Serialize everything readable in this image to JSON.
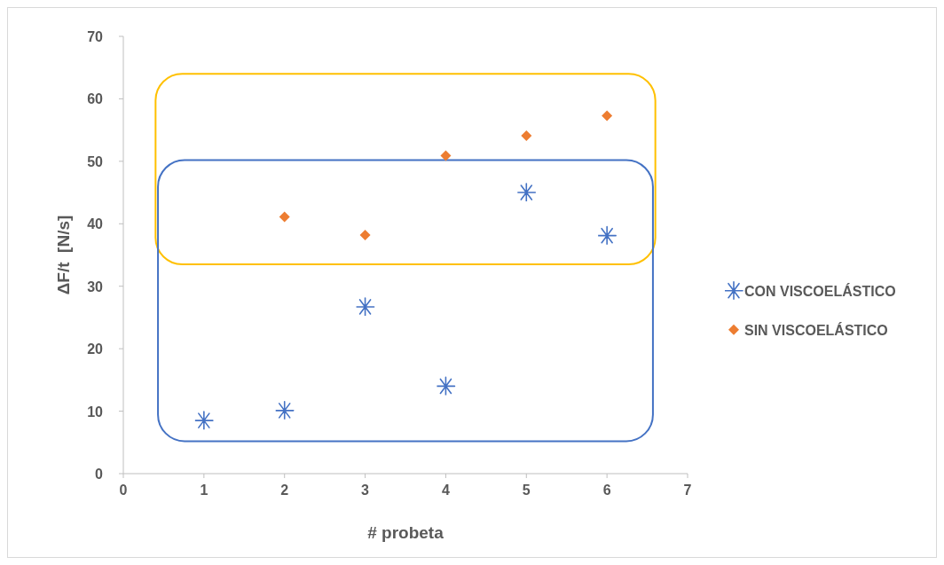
{
  "chart_data": {
    "type": "scatter",
    "xlabel": "# probeta",
    "ylabel": "ΔF/t  [N/s]",
    "x": [
      1,
      2,
      3,
      4,
      5,
      6
    ],
    "xlim": [
      0,
      7
    ],
    "xticks": [
      0,
      1,
      2,
      3,
      4,
      5,
      6,
      7
    ],
    "ylim": [
      0,
      70
    ],
    "yticks": [
      0,
      10,
      20,
      30,
      40,
      50,
      60,
      70
    ],
    "grid": false,
    "legend": "right",
    "series": [
      {
        "name": "CON VISCOELÁSTICO",
        "color": "#4472c4",
        "marker": "cross",
        "values": [
          8.5,
          10.1,
          26.7,
          14.0,
          45.0,
          38.1
        ]
      },
      {
        "name": "SIN VISCOELÁSTICO",
        "color": "#ed7d31",
        "marker": "diamond",
        "values": [
          null,
          41.1,
          38.2,
          50.9,
          54.1,
          57.3
        ]
      }
    ]
  }
}
